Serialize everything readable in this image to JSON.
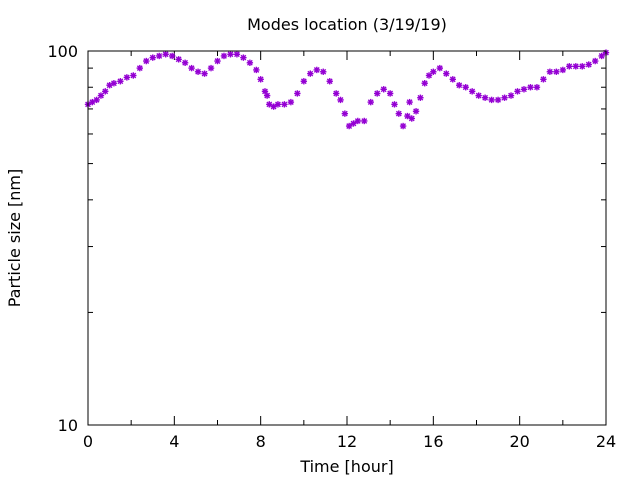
{
  "chart_data": {
    "type": "scatter",
    "title": "Modes location (3/19/19)",
    "xlabel": "Time [hour]",
    "ylabel": "Particle size [nm]",
    "xlim": [
      0,
      24
    ],
    "ylim": [
      10,
      100
    ],
    "yscale": "log",
    "grid": false,
    "legend": "none",
    "x_ticks": [
      0,
      4,
      8,
      12,
      16,
      20,
      24
    ],
    "x_tick_labels": [
      "0",
      "4",
      "8",
      "12",
      "16",
      "20",
      "24"
    ],
    "y_ticks": [
      10,
      100
    ],
    "y_tick_labels": [
      "10",
      "100"
    ],
    "marker_color": "#9400d3",
    "series": [
      {
        "marker": "star",
        "x": [
          0.0,
          0.2,
          0.4,
          0.6,
          0.8,
          1.0,
          1.2,
          1.5,
          1.8,
          2.1,
          2.4,
          2.7,
          3.0,
          3.3,
          3.6,
          3.9,
          4.2,
          4.5,
          4.8,
          5.1,
          5.4,
          5.7,
          6.0,
          6.3,
          6.6,
          6.9,
          7.2,
          7.5,
          7.8,
          8.0,
          8.2,
          8.3,
          8.4,
          8.6,
          8.8,
          9.1,
          9.4,
          9.7,
          10.0,
          10.3,
          10.6,
          10.9,
          11.2,
          11.5,
          11.7,
          11.9,
          12.1,
          12.3,
          12.5,
          12.8,
          13.1,
          13.4,
          13.7,
          14.0,
          14.2,
          14.4,
          14.6,
          14.8,
          14.9,
          15.0,
          15.2,
          15.4,
          15.6,
          15.8,
          16.0,
          16.3,
          16.6,
          16.9,
          17.2,
          17.5,
          17.8,
          18.1,
          18.4,
          18.7,
          19.0,
          19.3,
          19.6,
          19.9,
          20.2,
          20.5,
          20.8,
          21.1,
          21.4,
          21.7,
          22.0,
          22.3,
          22.6,
          22.9,
          23.2,
          23.5,
          23.8,
          24.0
        ],
        "y": [
          72,
          73,
          74,
          76,
          78,
          81,
          82,
          83,
          85,
          86,
          90,
          94,
          96,
          97,
          98,
          97,
          95,
          93,
          90,
          88,
          87,
          90,
          94,
          97,
          98,
          98,
          96,
          93,
          89,
          84,
          78,
          76,
          72,
          71,
          72,
          72,
          73,
          77,
          83,
          87,
          89,
          88,
          83,
          77,
          74,
          68,
          63,
          64,
          65,
          65,
          73,
          77,
          79,
          77,
          72,
          68,
          63,
          67,
          73,
          66,
          69,
          75,
          82,
          86,
          88,
          90,
          87,
          84,
          81,
          80,
          78,
          76,
          75,
          74,
          74,
          75,
          76,
          78,
          79,
          80,
          80,
          84,
          88,
          88,
          89,
          91,
          91,
          91,
          92,
          94,
          97,
          99
        ]
      }
    ]
  }
}
